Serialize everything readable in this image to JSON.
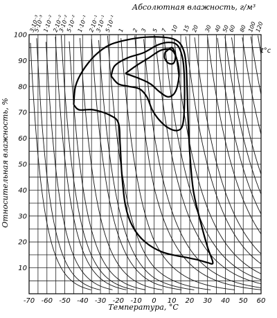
{
  "chart_data": {
    "type": "line",
    "title": "Абсолютная влажность, г/м³",
    "xlabel": "Температура, °C",
    "ylabel": "Относительная влажность, %",
    "corner_label": "t°c",
    "xlim": [
      -70,
      60
    ],
    "ylim": [
      0,
      100
    ],
    "x_ticks": [
      "-70",
      "-60",
      "-50",
      "-40",
      "-30",
      "-20",
      "-10",
      "0",
      "10",
      "20",
      "30",
      "40",
      "50",
      "60"
    ],
    "y_ticks": [
      "10",
      "20",
      "30",
      "40",
      "50",
      "60",
      "70",
      "80",
      "90",
      "100"
    ],
    "grid": true,
    "absolute_humidity_labels": [
      "3·10⁻³",
      "5·10⁻³",
      "1·10⁻²",
      "2·10⁻²",
      "3·10⁻²",
      "5·10⁻²",
      "1·10⁻¹",
      "2·10⁻¹",
      "3·10⁻¹",
      "5·10⁻¹",
      "1",
      "2",
      "3",
      "5",
      "7",
      "10",
      "15",
      "20",
      "30",
      "40",
      "50",
      "60",
      "80",
      "100",
      "120"
    ],
    "absolute_humidity_values": [
      0.003,
      0.005,
      0.01,
      0.02,
      0.03,
      0.05,
      0.1,
      0.2,
      0.3,
      0.5,
      1,
      2,
      3,
      5,
      7,
      10,
      15,
      20,
      30,
      40,
      50,
      60,
      80,
      100,
      120
    ],
    "series": [
      {
        "points": [
          [
            -45,
            73
          ],
          [
            -44,
            80
          ],
          [
            -40,
            86
          ],
          [
            -33,
            92
          ],
          [
            -25,
            96
          ],
          [
            -15,
            98
          ],
          [
            -5,
            99
          ],
          [
            5,
            99
          ],
          [
            12,
            98
          ],
          [
            16,
            95
          ],
          [
            18,
            88
          ],
          [
            19,
            70
          ],
          [
            20,
            55
          ],
          [
            22,
            40
          ],
          [
            26,
            28
          ],
          [
            30,
            18
          ],
          [
            33,
            12
          ],
          [
            30,
            12
          ],
          [
            25,
            13
          ],
          [
            18,
            14
          ],
          [
            5,
            16
          ],
          [
            -5,
            20
          ],
          [
            -12,
            26
          ],
          [
            -16,
            34
          ],
          [
            -18,
            46
          ],
          [
            -19,
            58
          ],
          [
            -20,
            66
          ],
          [
            -25,
            69
          ],
          [
            -34,
            71
          ],
          [
            -42,
            71
          ],
          [
            -45,
            73
          ]
        ]
      },
      {
        "points": [
          [
            -24,
            84
          ],
          [
            -22,
            88
          ],
          [
            -15,
            91
          ],
          [
            -6,
            93
          ],
          [
            2,
            96
          ],
          [
            8,
            97
          ],
          [
            13,
            96
          ],
          [
            16,
            91
          ],
          [
            17,
            83
          ],
          [
            17,
            72
          ],
          [
            16,
            65
          ],
          [
            13,
            63
          ],
          [
            8,
            64
          ],
          [
            3,
            67
          ],
          [
            -1,
            71
          ],
          [
            -4,
            76
          ],
          [
            -8,
            79
          ],
          [
            -14,
            80
          ],
          [
            -20,
            81
          ],
          [
            -24,
            84
          ]
        ]
      },
      {
        "points": [
          [
            -16,
            85
          ],
          [
            -10,
            88
          ],
          [
            -3,
            91
          ],
          [
            4,
            94
          ],
          [
            10,
            94
          ],
          [
            13,
            90
          ],
          [
            14,
            84
          ],
          [
            12,
            78
          ],
          [
            8,
            76
          ],
          [
            3,
            78
          ],
          [
            -2,
            81
          ],
          [
            -8,
            83
          ],
          [
            -16,
            85
          ]
        ]
      },
      {
        "points": [
          [
            6,
            93
          ],
          [
            10,
            95
          ],
          [
            12,
            92
          ],
          [
            11,
            89
          ],
          [
            8,
            89
          ],
          [
            6,
            91
          ],
          [
            6,
            93
          ]
        ]
      }
    ]
  }
}
